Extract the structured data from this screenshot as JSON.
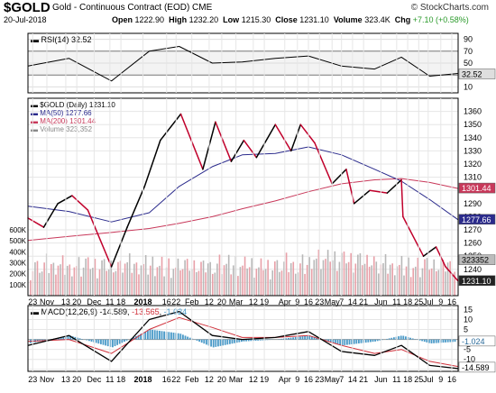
{
  "header": {
    "symbol": "$GOLD",
    "subtitle": "Gold - Continuous Contract (EOD)  CME",
    "brand": "© StockCharts.com",
    "date": "20-Jul-2018",
    "open_label": "Open",
    "open": "1222.90",
    "high_label": "High",
    "high": "1232.20",
    "low_label": "Low",
    "low": "1215.30",
    "close_label": "Close",
    "close": "1231.10",
    "volume_label": "Volume",
    "volume": "323.4K",
    "chg_label": "Chg",
    "chg": "+7.10 (+0.58%)"
  },
  "colors": {
    "price_up": "#000000",
    "price_down": "#c0002b",
    "ma50": "#2b2b8c",
    "ma200": "#c8385a",
    "volume": "#b8b8b8",
    "macd_hist": "#4a9ac8",
    "macd_line": "#000000",
    "signal_line": "#d0303a"
  },
  "chart_data": [
    {
      "type": "line",
      "panel": "RSI",
      "legend": "RSI(14) 32.52",
      "ylim": [
        0,
        100
      ],
      "ticks": [
        10,
        30,
        50,
        70,
        90
      ],
      "last_label": "32.52",
      "x": [
        "2017-10-20",
        "2017-11-15",
        "2017-12-12",
        "2018-01-05",
        "2018-01-24",
        "2018-02-14",
        "2018-03-05",
        "2018-03-26",
        "2018-04-16",
        "2018-05-07",
        "2018-05-28",
        "2018-06-14",
        "2018-07-02",
        "2018-07-20"
      ],
      "values": [
        45,
        58,
        20,
        70,
        78,
        50,
        52,
        58,
        62,
        45,
        40,
        60,
        28,
        32.52
      ]
    },
    {
      "type": "line",
      "panel": "Price",
      "legend": [
        {
          "name": "$GOLD (Daily)",
          "value": "1231.10"
        },
        {
          "name": "MA(50)",
          "value": "1277.66"
        },
        {
          "name": "MA(200)",
          "value": "1301.44"
        },
        {
          "name": "Volume",
          "value": "323,352"
        }
      ],
      "ylim": [
        1220,
        1370
      ],
      "price_ticks": [
        1230,
        1240,
        1250,
        1260,
        1270,
        1280,
        1290,
        1300,
        1310,
        1320,
        1330,
        1340,
        1350,
        1360
      ],
      "tick_labels": [
        "1360",
        "1350",
        "1340",
        "1330",
        "1320",
        "1310",
        "1300",
        "1290",
        "1280",
        "1270",
        "1260",
        "1250",
        "1240",
        "1230"
      ],
      "volume_ticks": [
        100,
        200,
        300,
        400,
        500,
        600
      ],
      "volume_tick_labels": [
        "600K",
        "500K",
        "400K",
        "300K",
        "200K",
        "100K"
      ],
      "volume_ylim": [
        0,
        1800
      ],
      "last_labels": {
        "ma200": "1301.44",
        "ma50": "1277.66",
        "volume": "323352",
        "close": "1231.10"
      },
      "series": [
        {
          "name": "$GOLD (Daily)",
          "x": [
            "2017-10-20",
            "2017-10-30",
            "2017-11-08",
            "2017-11-17",
            "2017-11-27",
            "2017-12-05",
            "2017-12-12",
            "2017-12-22",
            "2018-01-02",
            "2018-01-12",
            "2018-01-25",
            "2018-02-08",
            "2018-02-16",
            "2018-02-26",
            "2018-03-06",
            "2018-03-14",
            "2018-03-26",
            "2018-04-05",
            "2018-04-11",
            "2018-04-20",
            "2018-05-01",
            "2018-05-10",
            "2018-05-15",
            "2018-05-25",
            "2018-06-05",
            "2018-06-14",
            "2018-06-15",
            "2018-06-28",
            "2018-07-06",
            "2018-07-12",
            "2018-07-20"
          ],
          "values": [
            1279,
            1272,
            1290,
            1296,
            1285,
            1262,
            1242,
            1272,
            1303,
            1338,
            1358,
            1316,
            1352,
            1322,
            1338,
            1325,
            1350,
            1330,
            1350,
            1336,
            1305,
            1316,
            1290,
            1300,
            1298,
            1308,
            1280,
            1250,
            1257,
            1242,
            1231.1
          ]
        },
        {
          "name": "MA(50)",
          "x": [
            "2017-10-20",
            "2017-11-15",
            "2017-12-12",
            "2018-01-05",
            "2018-01-24",
            "2018-02-14",
            "2018-03-05",
            "2018-03-26",
            "2018-04-16",
            "2018-05-07",
            "2018-05-28",
            "2018-06-14",
            "2018-07-02",
            "2018-07-20"
          ],
          "values": [
            1288,
            1284,
            1276,
            1283,
            1303,
            1318,
            1327,
            1328,
            1333,
            1327,
            1316,
            1307,
            1293,
            1277.66
          ]
        },
        {
          "name": "MA(200)",
          "x": [
            "2017-10-20",
            "2017-11-15",
            "2017-12-12",
            "2018-01-05",
            "2018-01-24",
            "2018-02-14",
            "2018-03-05",
            "2018-03-26",
            "2018-04-16",
            "2018-05-07",
            "2018-05-28",
            "2018-06-14",
            "2018-07-02",
            "2018-07-20"
          ],
          "values": [
            1262,
            1265,
            1268,
            1271,
            1275,
            1280,
            1286,
            1292,
            1299,
            1305,
            1308,
            1309,
            1306,
            1301.44
          ]
        }
      ]
    },
    {
      "type": "line",
      "panel": "MACD",
      "legend": [
        {
          "name": "MACD(12,26,9)",
          "value": "-14.589"
        },
        {
          "name": "",
          "value": "-13.565"
        },
        {
          "name": "",
          "value": "-1.024"
        }
      ],
      "ylim": [
        -16,
        17
      ],
      "ticks": [
        -15,
        -10,
        -5,
        0,
        5,
        10,
        15
      ],
      "tick_labels": [
        "15",
        "10",
        "5",
        "0",
        "-5",
        "-10",
        "-15"
      ],
      "last_labels": {
        "histogram": "-1.024",
        "macd": "-14.589"
      },
      "x": [
        "2017-10-20",
        "2017-11-15",
        "2017-12-12",
        "2018-01-05",
        "2018-01-24",
        "2018-02-14",
        "2018-03-05",
        "2018-03-26",
        "2018-04-16",
        "2018-05-07",
        "2018-05-28",
        "2018-06-14",
        "2018-07-02",
        "2018-07-20"
      ],
      "series": [
        {
          "name": "MACD",
          "values": [
            -3,
            2,
            -11,
            10,
            14,
            2,
            0,
            1,
            4,
            -6,
            -8,
            -3,
            -13,
            -14.589
          ]
        },
        {
          "name": "Signal",
          "values": [
            -1,
            0,
            -7,
            5,
            11,
            6,
            1,
            1,
            2,
            -3,
            -7,
            -5,
            -11,
            -13.565
          ]
        },
        {
          "name": "Histogram",
          "values": [
            -2,
            2,
            -4,
            5,
            3,
            -4,
            -1,
            0,
            2,
            -3,
            -1,
            2,
            -2,
            -1.024
          ]
        }
      ]
    },
    {
      "type": "table",
      "panel": "x-axis",
      "x_ticks": [
        {
          "date": "2017-10-23",
          "label": "23"
        },
        {
          "date": "2017-11-01",
          "label": "Nov"
        },
        {
          "date": "2017-11-13",
          "label": "13"
        },
        {
          "date": "2017-11-20",
          "label": "20"
        },
        {
          "date": "2017-12-01",
          "label": "Dec"
        },
        {
          "date": "2017-12-11",
          "label": "11"
        },
        {
          "date": "2017-12-18",
          "label": "18"
        },
        {
          "date": "2018-01-01",
          "label": "2018"
        },
        {
          "date": "2018-01-16",
          "label": "16"
        },
        {
          "date": "2018-01-22",
          "label": "22"
        },
        {
          "date": "2018-02-01",
          "label": "Feb"
        },
        {
          "date": "2018-02-12",
          "label": "12"
        },
        {
          "date": "2018-02-20",
          "label": "20"
        },
        {
          "date": "2018-03-01",
          "label": "Mar"
        },
        {
          "date": "2018-03-12",
          "label": "12"
        },
        {
          "date": "2018-03-19",
          "label": "19"
        },
        {
          "date": "2018-04-01",
          "label": "Apr"
        },
        {
          "date": "2018-04-09",
          "label": "9"
        },
        {
          "date": "2018-04-16",
          "label": "16"
        },
        {
          "date": "2018-04-23",
          "label": "23"
        },
        {
          "date": "2018-05-01",
          "label": "May"
        },
        {
          "date": "2018-05-07",
          "label": "7"
        },
        {
          "date": "2018-05-14",
          "label": "14"
        },
        {
          "date": "2018-05-21",
          "label": "21"
        },
        {
          "date": "2018-06-01",
          "label": "Jun"
        },
        {
          "date": "2018-06-11",
          "label": "11"
        },
        {
          "date": "2018-06-18",
          "label": "18"
        },
        {
          "date": "2018-06-25",
          "label": "25"
        },
        {
          "date": "2018-07-01",
          "label": "Jul"
        },
        {
          "date": "2018-07-09",
          "label": "9"
        },
        {
          "date": "2018-07-16",
          "label": "16"
        }
      ]
    }
  ]
}
